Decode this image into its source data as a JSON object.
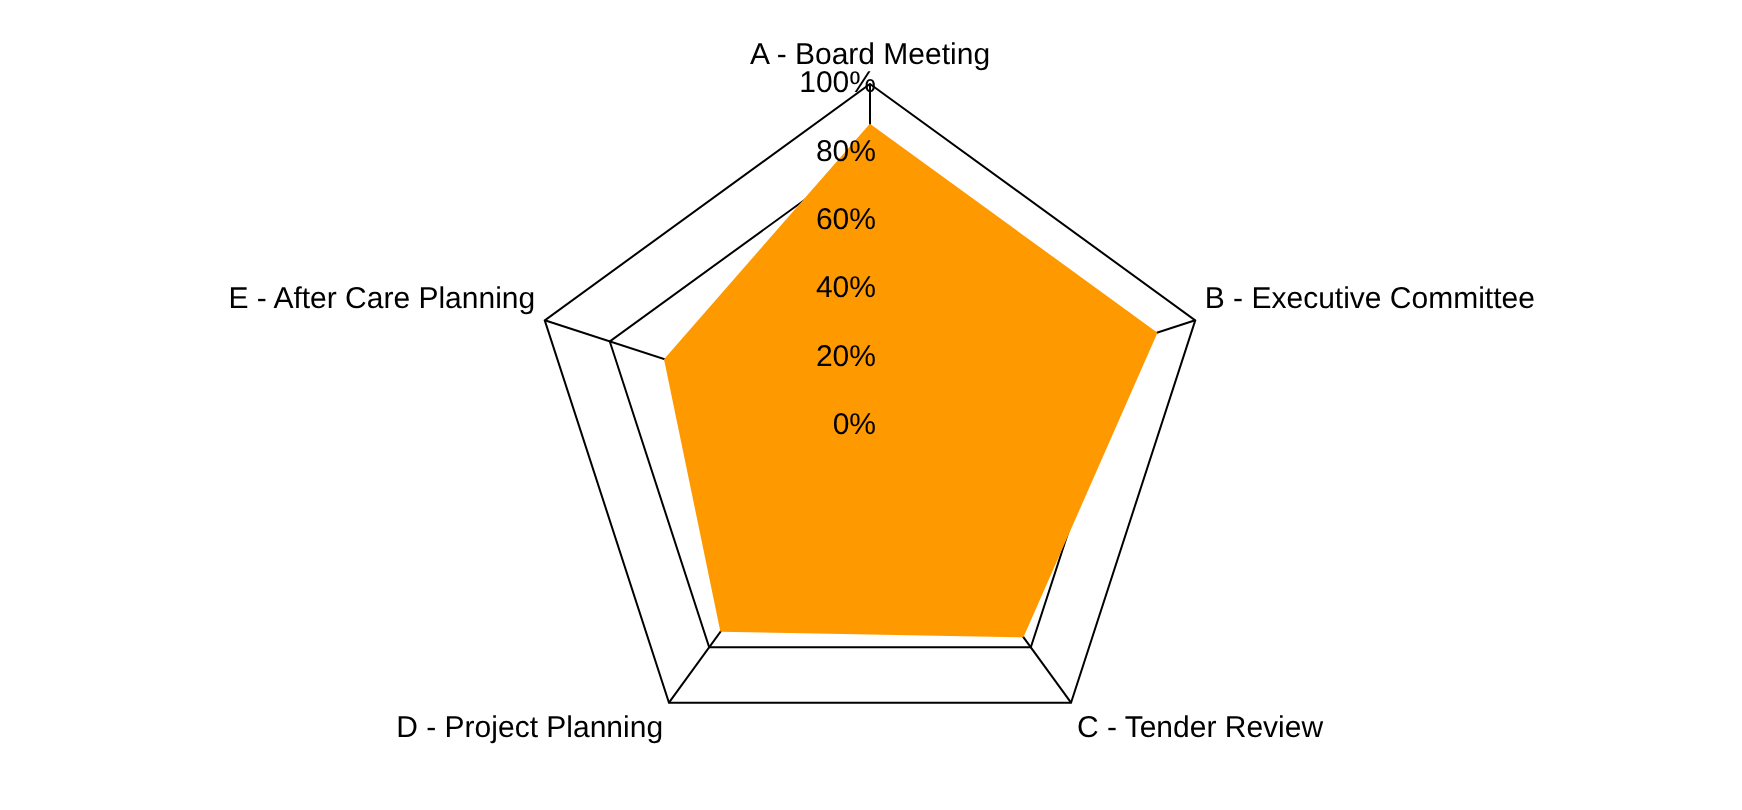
{
  "chart_data": {
    "type": "radar",
    "categories": [
      "A - Board Meeting",
      "B - Executive Committee",
      "C - Tender Review",
      "D - Project Planning",
      "E - After Care Planning"
    ],
    "series": [
      {
        "color": "#ff9900",
        "values": [
          88,
          88,
          76,
          74,
          63
        ]
      }
    ],
    "ylim": [
      0,
      100
    ],
    "yticks": [
      {
        "value": 0,
        "label": "0%"
      },
      {
        "value": 20,
        "label": "20%"
      },
      {
        "value": 40,
        "label": "40%"
      },
      {
        "value": 60,
        "label": "60%"
      },
      {
        "value": 80,
        "label": "80%"
      },
      {
        "value": 100,
        "label": "100%"
      }
    ],
    "grid": true,
    "legend": false,
    "marker": "none"
  }
}
